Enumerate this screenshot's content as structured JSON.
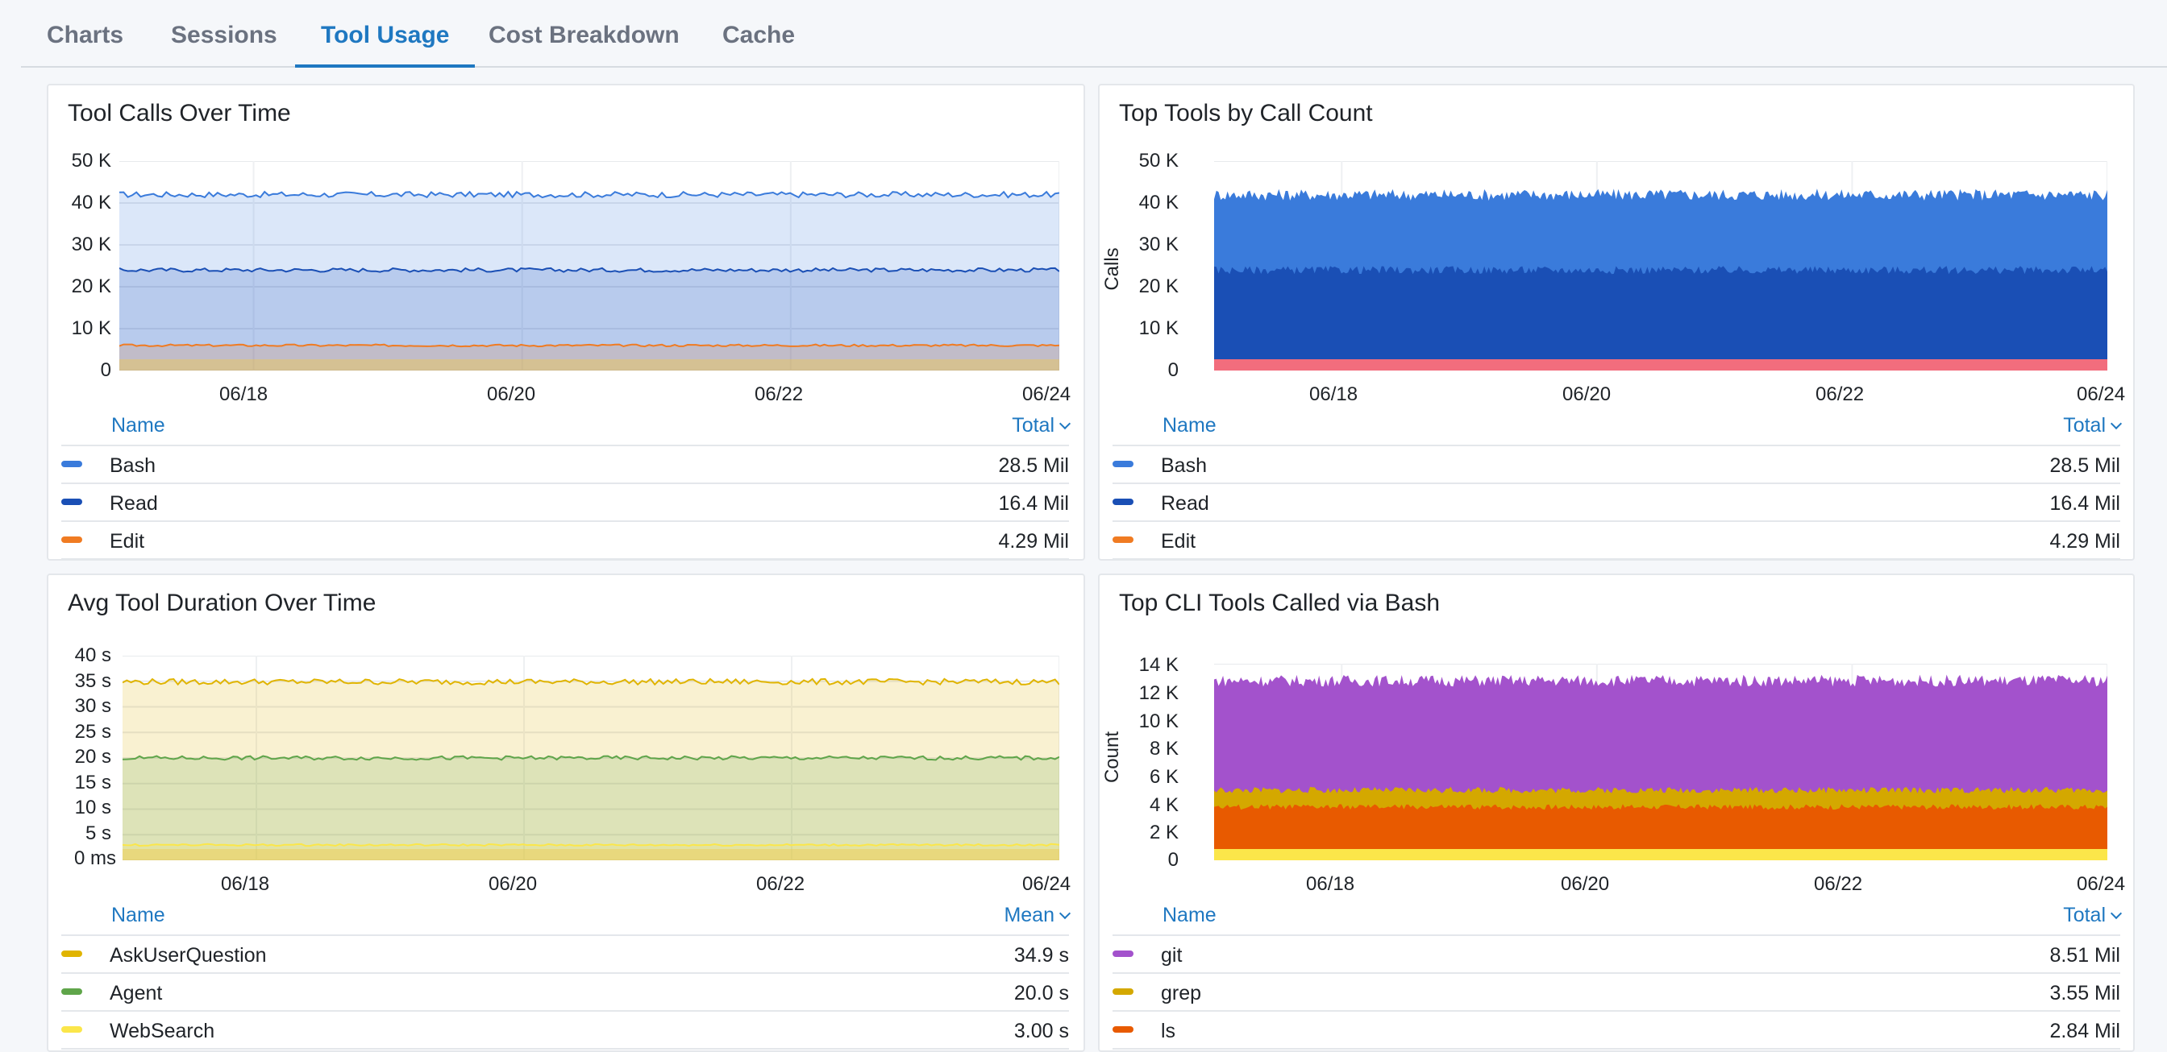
{
  "tabs": [
    {
      "label": "Charts",
      "active": false
    },
    {
      "label": "Sessions",
      "active": false
    },
    {
      "label": "Tool Usage",
      "active": true
    },
    {
      "label": "Cost Breakdown",
      "active": false
    },
    {
      "label": "Cache",
      "active": false
    }
  ],
  "panels": {
    "tool_calls": {
      "title": "Tool Calls Over Time",
      "legend_name_header": "Name",
      "legend_value_header": "Total",
      "legend": [
        {
          "name": "Bash",
          "value": "28.5 Mil",
          "color": "#3a7bdb"
        },
        {
          "name": "Read",
          "value": "16.4 Mil",
          "color": "#1a4fb5"
        },
        {
          "name": "Edit",
          "value": "4.29 Mil",
          "color": "#f07b22"
        }
      ]
    },
    "top_tools": {
      "title": "Top Tools by Call Count",
      "legend_name_header": "Name",
      "legend_value_header": "Total",
      "legend": [
        {
          "name": "Bash",
          "value": "28.5 Mil",
          "color": "#3a7bdb"
        },
        {
          "name": "Read",
          "value": "16.4 Mil",
          "color": "#1a4fb5"
        },
        {
          "name": "Edit",
          "value": "4.29 Mil",
          "color": "#f07b22"
        }
      ]
    },
    "avg_duration": {
      "title": "Avg Tool Duration Over Time",
      "legend_name_header": "Name",
      "legend_value_header": "Mean",
      "legend": [
        {
          "name": "AskUserQuestion",
          "value": "34.9 s",
          "color": "#e0b400"
        },
        {
          "name": "Agent",
          "value": "20.0 s",
          "color": "#5fa54a"
        },
        {
          "name": "WebSearch",
          "value": "3.00 s",
          "color": "#fbe64a"
        }
      ]
    },
    "cli_tools": {
      "title": "Top CLI Tools Called via Bash",
      "legend_name_header": "Name",
      "legend_value_header": "Total",
      "legend": [
        {
          "name": "git",
          "value": "8.51 Mil",
          "color": "#a352cc"
        },
        {
          "name": "grep",
          "value": "3.55 Mil",
          "color": "#d4a800"
        },
        {
          "name": "ls",
          "value": "2.84 Mil",
          "color": "#e85a00"
        }
      ]
    }
  },
  "chart_data": [
    {
      "type": "line",
      "title": "Tool Calls Over Time",
      "ylabel": "",
      "ytick_labels": [
        "50 K",
        "40 K",
        "30 K",
        "20 K",
        "10 K",
        "0"
      ],
      "ylim": [
        0,
        50000
      ],
      "xtick_labels": [
        "06/18",
        "06/20",
        "06/22",
        "06/24"
      ],
      "x_range": [
        "06/17",
        "06/24"
      ],
      "fill": true,
      "series": [
        {
          "name": "Bash",
          "level": 42000,
          "color": "#3a7bdb"
        },
        {
          "name": "Read",
          "level": 24000,
          "color": "#1a4fb5"
        },
        {
          "name": "Edit",
          "level": 6000,
          "color": "#f07b22"
        }
      ]
    },
    {
      "type": "area",
      "title": "Top Tools by Call Count",
      "ylabel": "Calls",
      "ytick_labels": [
        "50 K",
        "40 K",
        "30 K",
        "20 K",
        "10 K",
        "0"
      ],
      "ylim": [
        0,
        50000
      ],
      "xtick_labels": [
        "06/18",
        "06/20",
        "06/22",
        "06/24"
      ],
      "x_range": [
        "06/17",
        "06/24"
      ],
      "stacked": true,
      "series": [
        {
          "name": "Bash",
          "level": 42000,
          "color": "#3a7bdb"
        },
        {
          "name": "Read",
          "level": 24000,
          "color": "#1a4fb5"
        }
      ]
    },
    {
      "type": "line",
      "title": "Avg Tool Duration Over Time",
      "ylabel": "",
      "ytick_labels": [
        "40 s",
        "35 s",
        "30 s",
        "25 s",
        "20 s",
        "15 s",
        "10 s",
        "5 s",
        "0 ms"
      ],
      "ylim": [
        0,
        40
      ],
      "xtick_labels": [
        "06/18",
        "06/20",
        "06/22",
        "06/24"
      ],
      "x_range": [
        "06/17",
        "06/24"
      ],
      "fill": true,
      "series": [
        {
          "name": "AskUserQuestion",
          "level": 34.9,
          "color": "#e0b400"
        },
        {
          "name": "Agent",
          "level": 20.0,
          "color": "#5fa54a"
        },
        {
          "name": "WebSearch",
          "level": 3.0,
          "color": "#fbe64a"
        }
      ]
    },
    {
      "type": "area",
      "title": "Top CLI Tools Called via Bash",
      "ylabel": "Count",
      "ytick_labels": [
        "14 K",
        "12 K",
        "10 K",
        "8 K",
        "6 K",
        "4 K",
        "2 K",
        "0"
      ],
      "ylim": [
        0,
        14000
      ],
      "xtick_labels": [
        "06/18",
        "06/20",
        "06/22",
        "06/24"
      ],
      "x_range": [
        "06/17",
        "06/24"
      ],
      "stacked": true,
      "series": [
        {
          "name": "git",
          "level": 12800,
          "color": "#a352cc"
        },
        {
          "name": "grep",
          "level": 5000,
          "color": "#d4a800"
        },
        {
          "name": "ls",
          "level": 3800,
          "color": "#e85a00"
        }
      ]
    }
  ]
}
